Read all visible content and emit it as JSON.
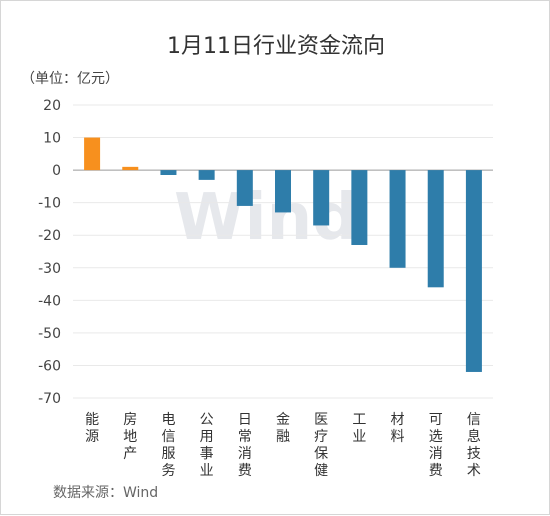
{
  "chart_data": {
    "type": "bar",
    "title": "1月11日行业资金流向",
    "unit_label": "（单位：亿元）",
    "source": "数据来源：Wind",
    "watermark": "Wind",
    "categories": [
      "能源",
      "房地产",
      "电信服务",
      "公用事业",
      "日常消费",
      "金融",
      "医疗保健",
      "工业",
      "材料",
      "可选消费",
      "信息技术"
    ],
    "values": [
      10,
      1,
      -1.5,
      -3,
      -11,
      -13,
      -17,
      -23,
      -30,
      -36,
      -62
    ],
    "ylim": [
      -70,
      20
    ],
    "yticks": [
      20,
      10,
      0,
      -10,
      -20,
      -30,
      -40,
      -50,
      -60,
      -70
    ],
    "grid": true,
    "colors": {
      "positive": "#f7901e",
      "negative": "#2e7daa",
      "grid": "#e9e9e9",
      "axis": "#9a9a9a"
    }
  }
}
